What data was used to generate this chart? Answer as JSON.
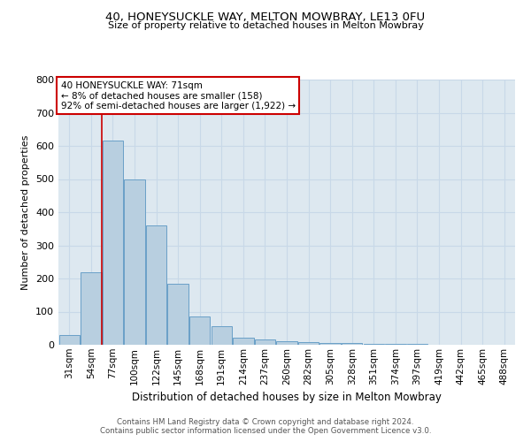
{
  "title": "40, HONEYSUCKLE WAY, MELTON MOWBRAY, LE13 0FU",
  "subtitle": "Size of property relative to detached houses in Melton Mowbray",
  "xlabel": "Distribution of detached houses by size in Melton Mowbray",
  "ylabel": "Number of detached properties",
  "categories": [
    "31sqm",
    "54sqm",
    "77sqm",
    "100sqm",
    "122sqm",
    "145sqm",
    "168sqm",
    "191sqm",
    "214sqm",
    "237sqm",
    "260sqm",
    "282sqm",
    "305sqm",
    "328sqm",
    "351sqm",
    "374sqm",
    "397sqm",
    "419sqm",
    "442sqm",
    "465sqm",
    "488sqm"
  ],
  "values": [
    30,
    220,
    615,
    500,
    360,
    185,
    85,
    55,
    22,
    15,
    12,
    7,
    5,
    5,
    4,
    4,
    4,
    0,
    0,
    0,
    0
  ],
  "bar_color": "#b8cfe0",
  "bar_edge_color": "#6aa0c8",
  "highlight_bar_index": 2,
  "highlight_color": "#cc0000",
  "annotation_line1": "40 HONEYSUCKLE WAY: 71sqm",
  "annotation_line2": "← 8% of detached houses are smaller (158)",
  "annotation_line3": "92% of semi-detached houses are larger (1,922) →",
  "annotation_box_color": "#ffffff",
  "annotation_box_edge": "#cc0000",
  "ylim": [
    0,
    800
  ],
  "yticks": [
    0,
    100,
    200,
    300,
    400,
    500,
    600,
    700,
    800
  ],
  "grid_color": "#c8d8e8",
  "background_color": "#dde8f0",
  "footer": "Contains HM Land Registry data © Crown copyright and database right 2024.\nContains public sector information licensed under the Open Government Licence v3.0."
}
